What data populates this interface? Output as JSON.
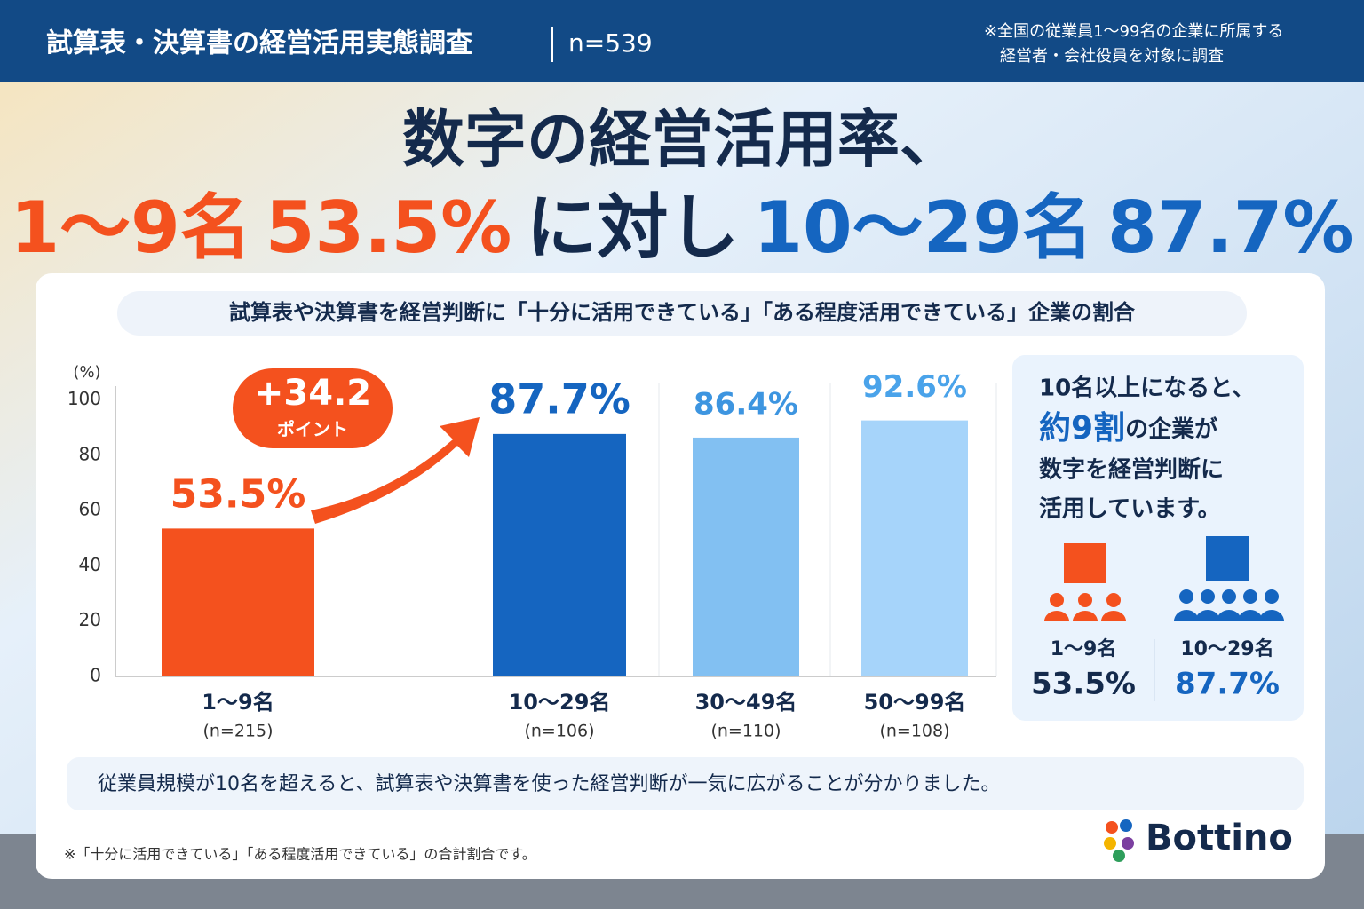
{
  "header": {
    "title": "試算表・決算書の経営活用実態調査",
    "sample": "n=539",
    "note": [
      "※全国の従業員1〜99名の企業に所属する",
      "経営者・会社役員を対象に調査"
    ]
  },
  "headline": {
    "line1": "数字の経営活用率、",
    "line2": [
      "1〜9名",
      "53.5%",
      "に対し",
      "10〜29名",
      "87.7%"
    ]
  },
  "chart_data": {
    "type": "bar",
    "title": "試算表や決算書を経営判断に「十分に活用できている」「ある程度活用できている」企業の割合",
    "y_label": "(%)",
    "categories": [
      "1〜9名",
      "10〜29名",
      "30〜49名",
      "50〜99名"
    ],
    "category_notes": [
      "(n=215)",
      "(n=106)",
      "(n=110)",
      "(n=108)"
    ],
    "values": [
      53.5,
      87.7,
      86.4,
      92.6
    ],
    "value_labels": [
      "53.5%",
      "87.7%",
      "86.4%",
      "92.6%"
    ],
    "colors": [
      "#f4511e",
      "#1565c0",
      "#82c0f2",
      "#a6d4fa"
    ],
    "label_colors": [
      "#f4511e",
      "#1565c0",
      "#3d95e0",
      "#4aa3ea"
    ],
    "ylim": [
      0,
      105
    ],
    "yticks": [
      0,
      20,
      40,
      60,
      80,
      100
    ],
    "grid": false,
    "annotations": [
      "+34.2",
      "ポイント"
    ]
  },
  "side_panel": {
    "lines": [
      "10名以上になると、",
      "数字を経営判断に",
      "活用しています。"
    ],
    "emphasis": "約9割",
    "emphasis_rest": "の企業が",
    "items": [
      {
        "label": "1〜9名",
        "value": "53.5%"
      },
      {
        "label": "10〜29名",
        "value": "87.7%"
      }
    ]
  },
  "summary": "従業員規模が10名を超えると、試算表や決算書を使った経営判断が一気に広がることが分かりました。",
  "footnote": "※「十分に活用できている」「ある程度活用できている」の合計割合です。",
  "logo": "Bottino"
}
